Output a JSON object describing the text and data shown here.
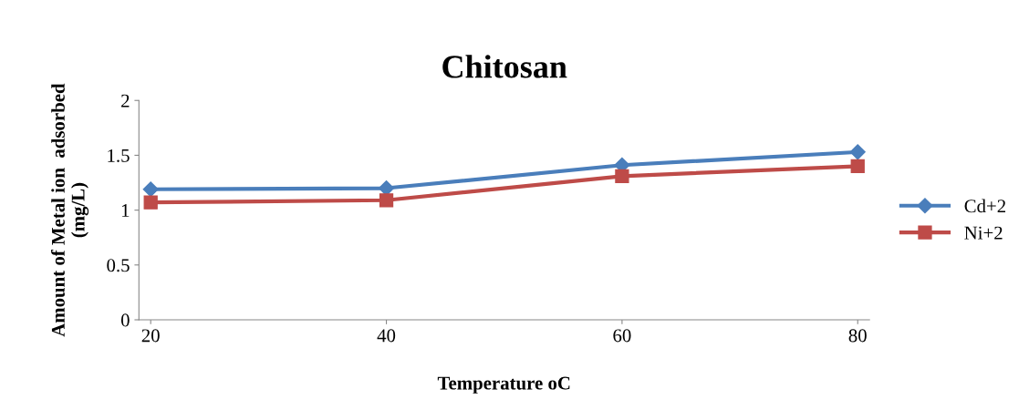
{
  "chart_data": {
    "type": "line",
    "title": "Chitosan",
    "xlabel": "Temperature oC",
    "ylabel": "Amount of Metal ion  adsorbed\n(mg/L)",
    "categories": [
      "20",
      "40",
      "60",
      "80"
    ],
    "series": [
      {
        "name": "Cd+2",
        "color": "#4a7ebb",
        "marker": "diamond",
        "values": [
          1.19,
          1.2,
          1.41,
          1.53
        ]
      },
      {
        "name": "Ni+2",
        "color": "#be4b48",
        "marker": "square",
        "values": [
          1.07,
          1.09,
          1.31,
          1.4
        ]
      }
    ],
    "ylim": [
      0,
      2
    ],
    "yticks": [
      0,
      0.5,
      1,
      1.5,
      2
    ],
    "grid": false,
    "legend": "right"
  }
}
